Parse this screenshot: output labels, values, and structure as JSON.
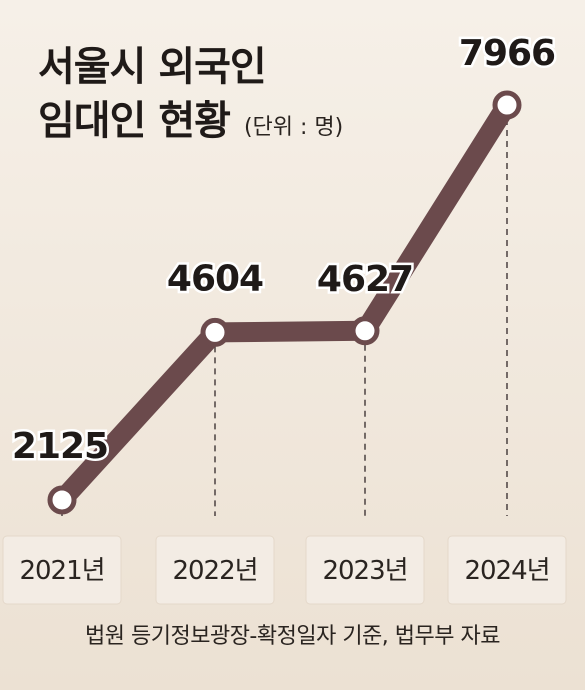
{
  "title_line1": "서울시 외국인",
  "title_line2": "임대인 현황",
  "unit": "(단위 : 명)",
  "source": "법원 등기정보광장-확정일자 기준, 법무부 자료",
  "colors": {
    "line": "#6b4a4c",
    "marker_fill": "#ffffff",
    "marker_stroke": "#6b4a4c",
    "text": "#1f1a18",
    "box": "#f3ece4"
  },
  "chart_data": {
    "type": "line",
    "categories": [
      "2021년",
      "2022년",
      "2023년",
      "2024년"
    ],
    "series": [
      {
        "name": "",
        "values": [
          2125,
          4604,
          4627,
          7966
        ]
      }
    ],
    "title": "서울시 외국인 임대인 현황",
    "unit": "(단위 : 명)",
    "xlabel": "",
    "ylabel": "",
    "ylim": [
      2125,
      7966
    ],
    "grid": false,
    "legend": "none",
    "data_labels": [
      "2125",
      "4604",
      "4627",
      "7966"
    ]
  }
}
